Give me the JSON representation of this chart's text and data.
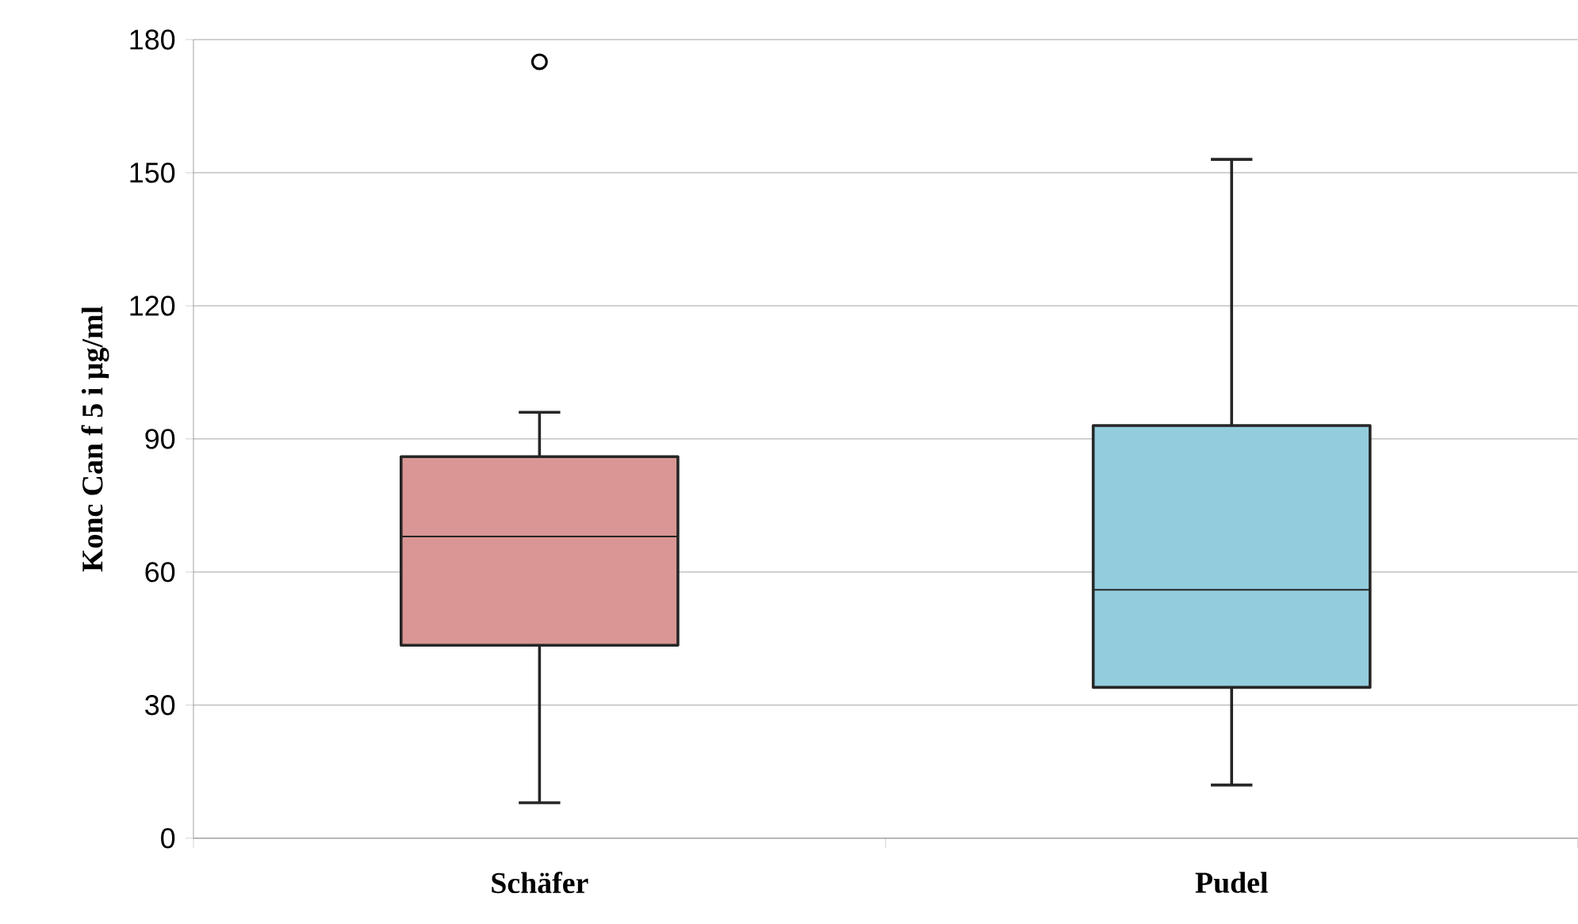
{
  "chart_data": {
    "type": "box",
    "ylabel": "Konc Can f 5 i µg/ml",
    "categories": [
      "Schäfer",
      "Pudel"
    ],
    "boxes": [
      {
        "low": 8,
        "q1": 43.5,
        "median": 68,
        "q3": 86,
        "high": 96,
        "outliers": [
          175
        ]
      },
      {
        "low": 12,
        "q1": 34,
        "median": 56,
        "q3": 93,
        "high": 153
      }
    ],
    "colors": [
      "#d99694",
      "#93cddd"
    ],
    "ylim": [
      0,
      180
    ],
    "yticks": [
      0,
      30,
      60,
      90,
      120,
      150,
      180
    ],
    "grid": "y"
  }
}
